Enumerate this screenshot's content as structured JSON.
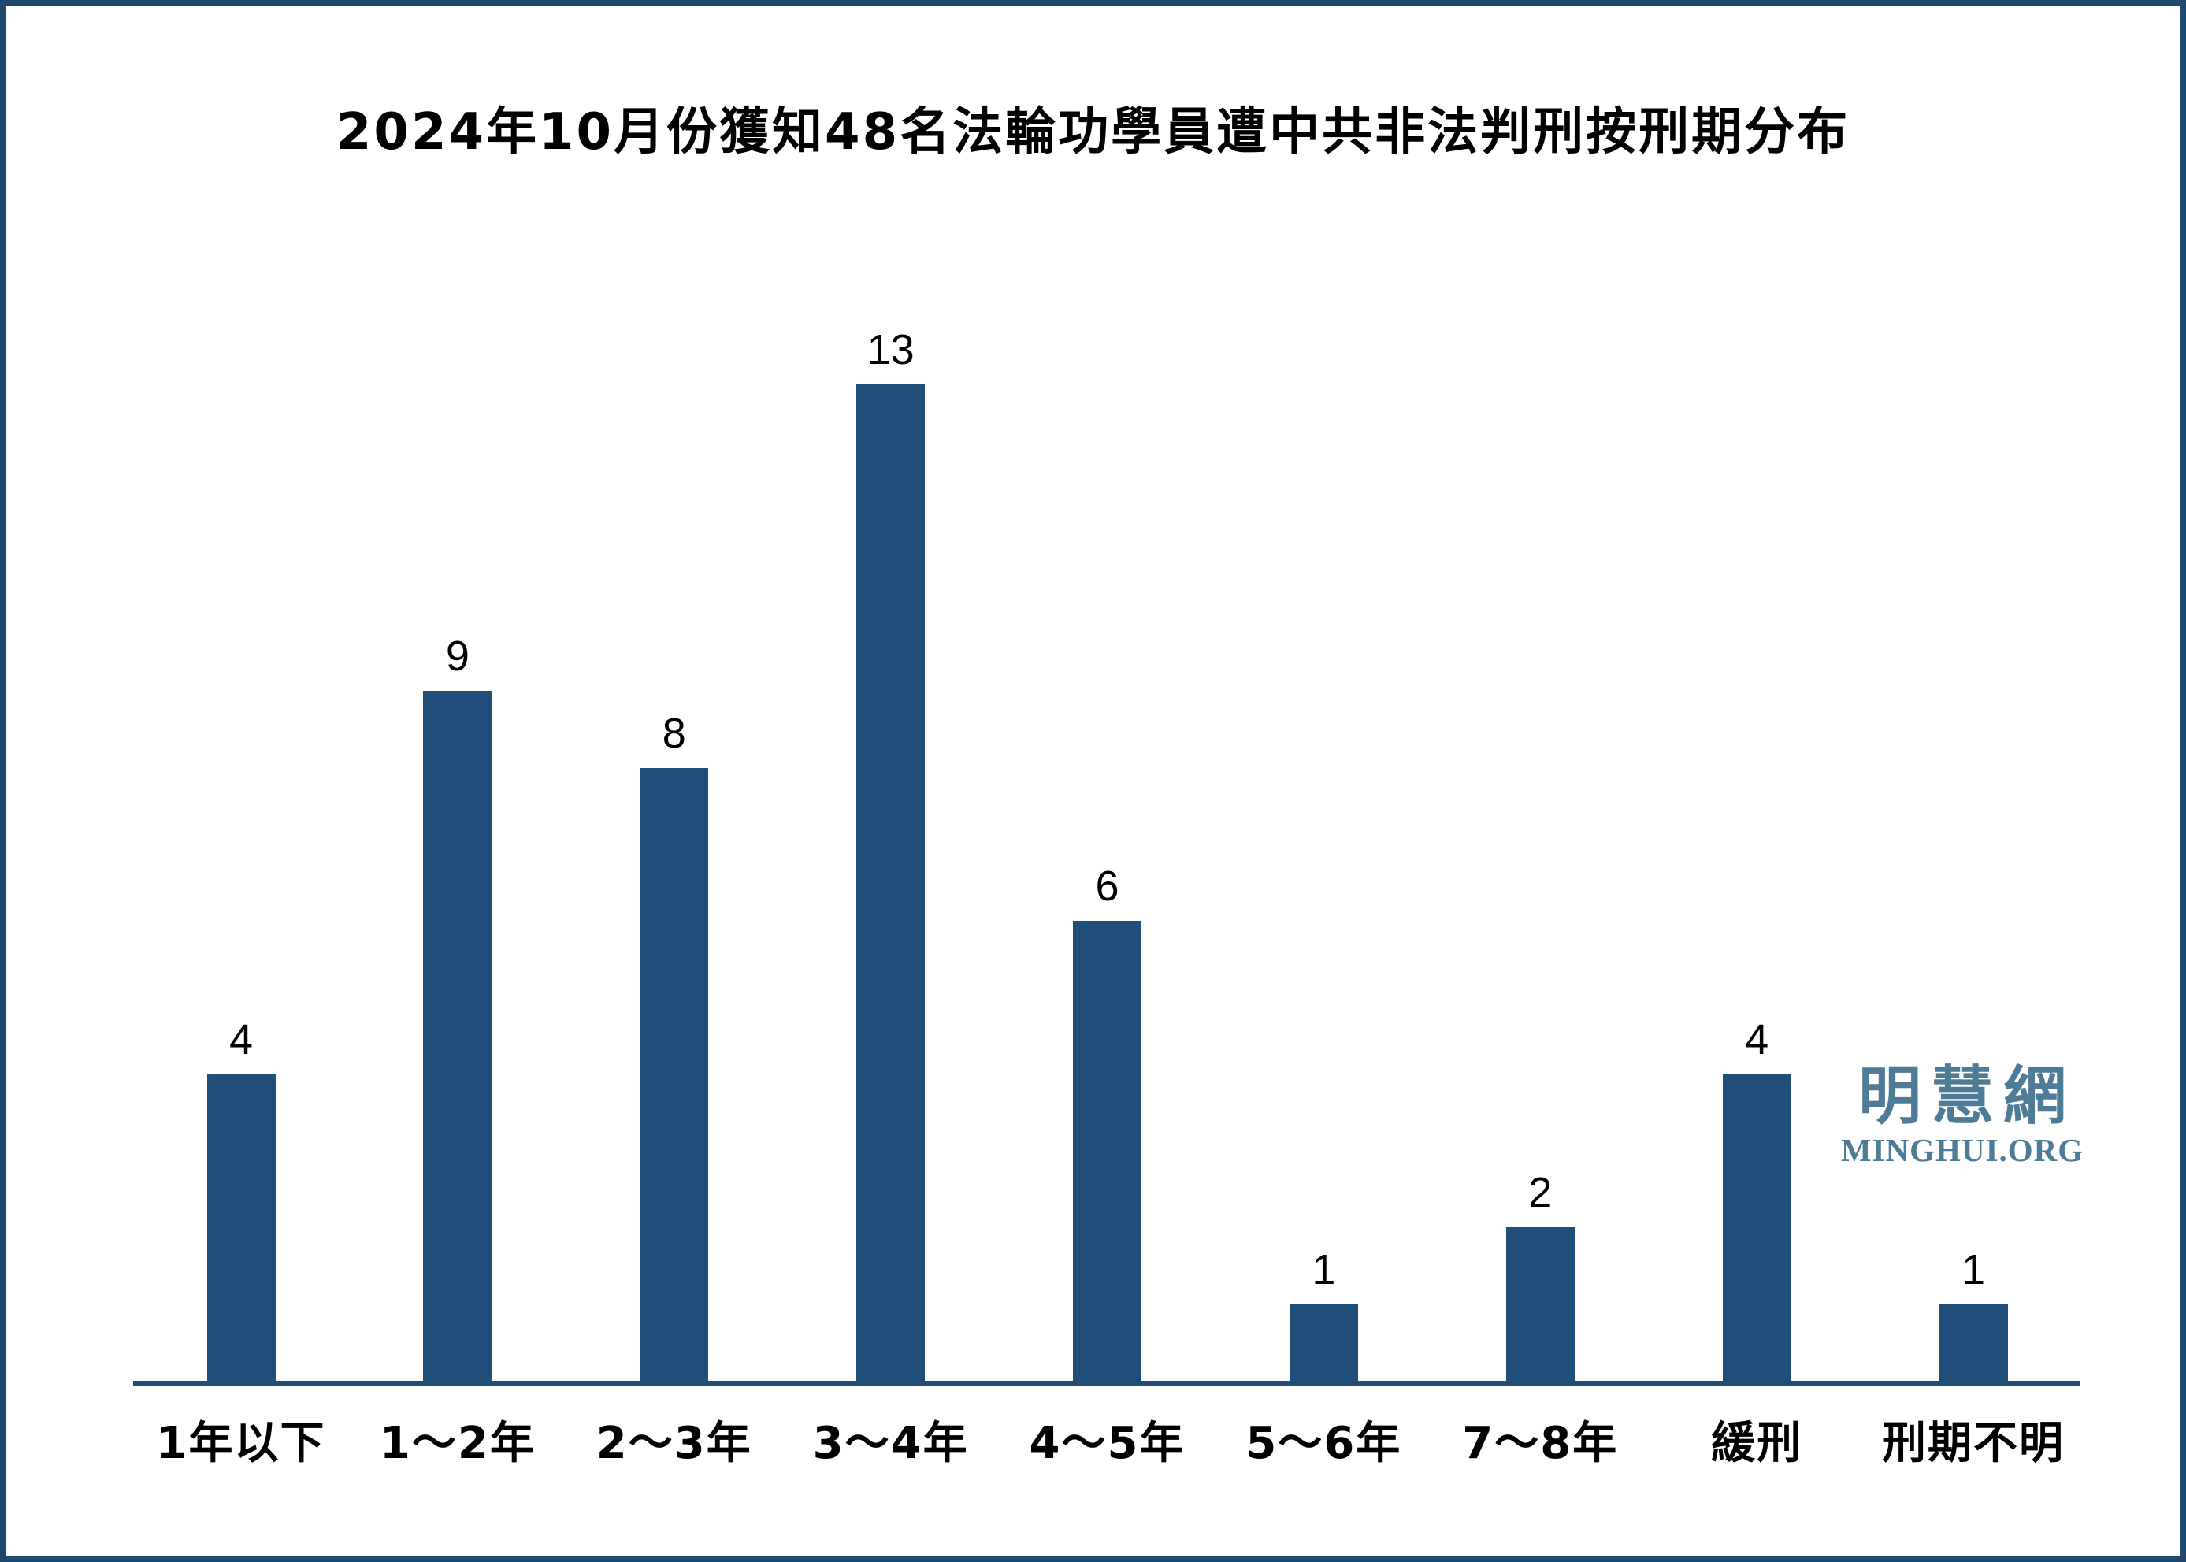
{
  "page": {
    "background_color": "#ffffff",
    "frame_color": "#1d4a6e"
  },
  "chart_data": {
    "type": "bar",
    "title": "2024年10月份獲知48名法輪功學員遭中共非法判刑按刑期分布",
    "categories": [
      "1年以下",
      "1～2年",
      "2～3年",
      "3～4年",
      "4～5年",
      "5～6年",
      "7～8年",
      "緩刑",
      "刑期不明"
    ],
    "values": [
      4,
      9,
      8,
      13,
      6,
      1,
      2,
      4,
      1
    ],
    "xlabel": "",
    "ylabel": "",
    "ylim": [
      0,
      14
    ],
    "grid": false,
    "y_axis_visible": false,
    "data_labels_visible": true,
    "legend_position": "none",
    "bar_color": "#1F4E79",
    "axis_color": "#1F4E79",
    "label_color": "#000000"
  },
  "logo": {
    "chinese": "明慧網",
    "english": "MINGHUI.ORG",
    "color": "#4e7c96"
  }
}
